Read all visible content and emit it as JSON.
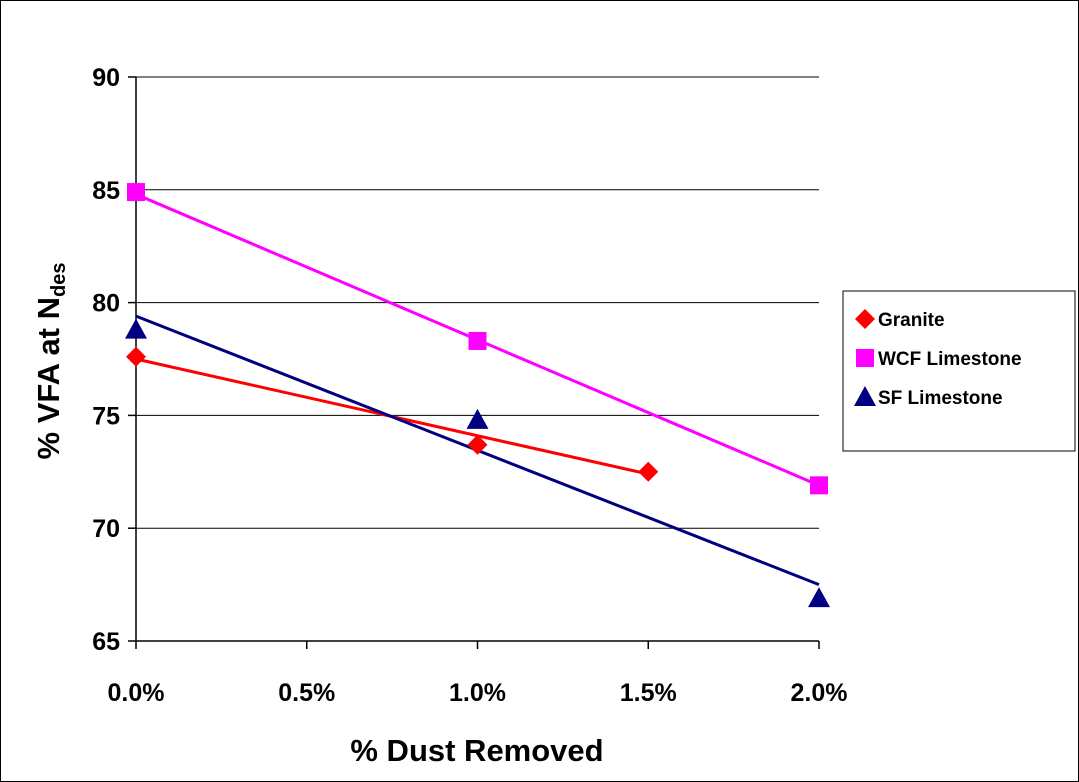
{
  "chart_data": {
    "type": "scatter",
    "xlabel": "% Dust Removed",
    "ylabel_main": "% VFA at N",
    "ylabel_sub": "des",
    "xlim": [
      0,
      0.02
    ],
    "ylim": [
      65,
      90
    ],
    "x_ticks": [
      0,
      0.005,
      0.01,
      0.015,
      0.02
    ],
    "x_tick_labels": [
      "0.0%",
      "0.5%",
      "1.0%",
      "1.5%",
      "2.0%"
    ],
    "y_ticks": [
      65,
      70,
      75,
      80,
      85,
      90
    ],
    "y_tick_labels": [
      "65",
      "70",
      "75",
      "80",
      "85",
      "90"
    ],
    "grid": "horizontal",
    "legend_position": "right",
    "series": [
      {
        "name": "Granite",
        "marker": "diamond",
        "color": "#ff0000",
        "x": [
          0,
          0.01,
          0.015
        ],
        "y": [
          77.6,
          73.7,
          72.5
        ],
        "trendline": {
          "x": [
            0,
            0.015
          ],
          "y": [
            77.5,
            72.4
          ]
        }
      },
      {
        "name": "WCF Limestone",
        "marker": "square",
        "color": "#ff00ff",
        "x": [
          0,
          0.01,
          0.02
        ],
        "y": [
          84.9,
          78.3,
          71.9
        ],
        "trendline": {
          "x": [
            0,
            0.02
          ],
          "y": [
            84.8,
            71.9
          ]
        }
      },
      {
        "name": "SF Limestone",
        "marker": "triangle",
        "color": "#000080",
        "x": [
          0,
          0.01,
          0.02
        ],
        "y": [
          78.8,
          74.8,
          66.9
        ],
        "trendline": {
          "x": [
            0,
            0.02
          ],
          "y": [
            79.4,
            67.5
          ]
        }
      }
    ]
  }
}
